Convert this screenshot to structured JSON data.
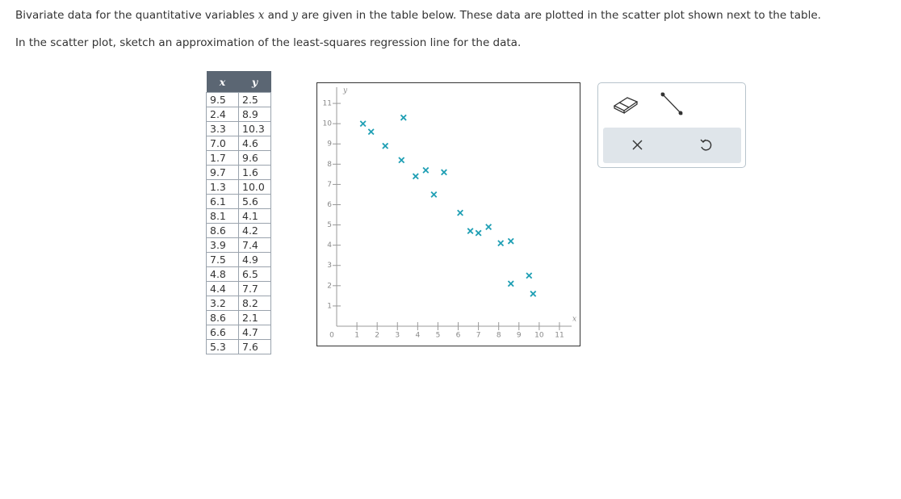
{
  "instructions": {
    "line1": [
      "Bivariate data for the quantitative variables ",
      "x",
      " and ",
      "y",
      " are given in the table below. These data are plotted in the scatter plot shown next to the table."
    ],
    "line2": "In the scatter plot, sketch an approximation of the least-squares regression line for the data."
  },
  "table": {
    "header": [
      "x",
      "y"
    ],
    "rows": [
      [
        "9.5",
        "2.5"
      ],
      [
        "2.4",
        "8.9"
      ],
      [
        "3.3",
        "10.3"
      ],
      [
        "7.0",
        "4.6"
      ],
      [
        "1.7",
        "9.6"
      ],
      [
        "9.7",
        "1.6"
      ],
      [
        "1.3",
        "10.0"
      ],
      [
        "6.1",
        "5.6"
      ],
      [
        "8.1",
        "4.1"
      ],
      [
        "8.6",
        "4.2"
      ],
      [
        "3.9",
        "7.4"
      ],
      [
        "7.5",
        "4.9"
      ],
      [
        "4.8",
        "6.5"
      ],
      [
        "4.4",
        "7.7"
      ],
      [
        "3.2",
        "8.2"
      ],
      [
        "8.6",
        "2.1"
      ],
      [
        "6.6",
        "4.7"
      ],
      [
        "5.3",
        "7.6"
      ]
    ]
  },
  "chart_data": {
    "type": "scatter",
    "x_label": "x",
    "y_label": "y",
    "origin_label": "0",
    "xlim": [
      0,
      11.6
    ],
    "ylim": [
      0,
      11.8
    ],
    "xticks": [
      1,
      2,
      3,
      4,
      5,
      6,
      7,
      8,
      9,
      10,
      11
    ],
    "yticks": [
      1,
      2,
      3,
      4,
      5,
      6,
      7,
      8,
      9,
      10,
      11
    ],
    "series": [
      {
        "color": "#1f9fb4",
        "x": [
          9.5,
          2.4,
          3.3,
          7.0,
          1.7,
          9.7,
          1.3,
          6.1,
          8.1,
          8.6,
          3.9,
          7.5,
          4.8,
          4.4,
          3.2,
          8.6,
          6.6,
          5.3
        ],
        "values": [
          2.5,
          8.9,
          10.3,
          4.6,
          9.6,
          1.6,
          10.0,
          5.6,
          4.1,
          4.2,
          7.4,
          4.9,
          6.5,
          7.7,
          8.2,
          2.1,
          4.7,
          7.6
        ]
      }
    ]
  }
}
